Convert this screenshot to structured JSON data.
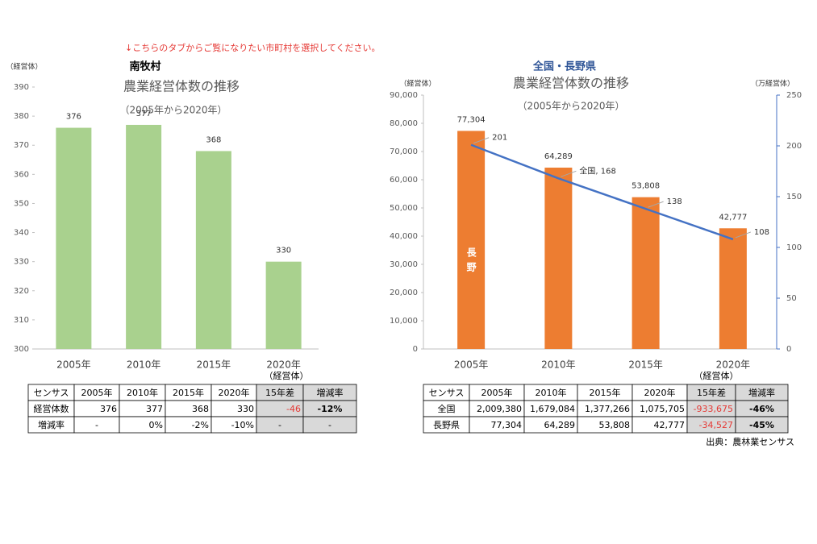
{
  "notice": "↓こちらのタブからご覧になりたい市町村を選択してください。",
  "chart_data": [
    {
      "type": "bar",
      "header": "南牧村",
      "title": "農業経営体数の推移",
      "subtitle": "（2005年から2020年）",
      "y_label": "（経営体）",
      "categories": [
        "2005年",
        "2010年",
        "2015年",
        "2020年"
      ],
      "values": [
        376,
        377,
        368,
        330
      ],
      "color": "#a9d18e",
      "ylim": [
        300,
        390
      ],
      "yticks": [
        300,
        310,
        320,
        330,
        340,
        350,
        360,
        370,
        380,
        390
      ]
    },
    {
      "type": "combo",
      "header": "全国・長野県",
      "title": "農業経営体数の推移",
      "subtitle": "（2005年から2020年）",
      "y_label": "（経営体）",
      "y2_label": "（万経営体）",
      "categories": [
        "2005年",
        "2010年",
        "2015年",
        "2020年"
      ],
      "series": [
        {
          "name": "長野",
          "color": "#ed7d31",
          "values": [
            77304,
            64289,
            53808,
            42777
          ],
          "value_labels": [
            "77,304",
            "64,289",
            "53,808",
            "42,777"
          ]
        },
        {
          "name": "全国",
          "color": "#4472c4",
          "axis": "y2",
          "values": [
            201,
            168,
            138,
            108
          ],
          "value_labels": [
            "201",
            "全国, 168",
            "138",
            "108"
          ]
        }
      ],
      "ylim": [
        0,
        90000
      ],
      "yticks": [
        0,
        {
          "value": 10000,
          "label": "10,000"
        },
        {
          "value": 20000,
          "label": "20,000"
        },
        {
          "value": 30000,
          "label": "30,000"
        },
        {
          "value": 40000,
          "label": "40,000"
        },
        {
          "value": 50000,
          "label": "50,000"
        },
        {
          "value": 60000,
          "label": "60,000"
        },
        {
          "value": 70000,
          "label": "70,000"
        },
        {
          "value": 80000,
          "label": "80,000"
        },
        {
          "value": 90000,
          "label": "90,000"
        }
      ],
      "y2lim": [
        0,
        250
      ],
      "y2ticks": [
        0,
        50,
        100,
        150,
        200,
        250
      ]
    }
  ],
  "tables": [
    {
      "unit": "（経営体）",
      "header": [
        "センサス",
        "2005年",
        "2010年",
        "2015年",
        "2020年",
        "15年差",
        "増減率"
      ],
      "rows": [
        [
          "経営体数",
          "376",
          "377",
          "368",
          "330",
          "-46",
          "-12%"
        ],
        [
          "増減率",
          "-",
          "0%",
          "-2%",
          "-10%",
          "-",
          "-"
        ]
      ]
    },
    {
      "unit": "（経営体）",
      "header": [
        "センサス",
        "2005年",
        "2010年",
        "2015年",
        "2020年",
        "15年差",
        "増減率"
      ],
      "rows": [
        [
          "全国",
          "2,009,380",
          "1,679,084",
          "1,377,266",
          "1,075,705",
          "-933,675",
          "-46%"
        ],
        [
          "長野県",
          "77,304",
          "64,289",
          "53,808",
          "42,777",
          "-34,527",
          "-45%"
        ]
      ]
    }
  ],
  "source": "出典：農林業センサス"
}
